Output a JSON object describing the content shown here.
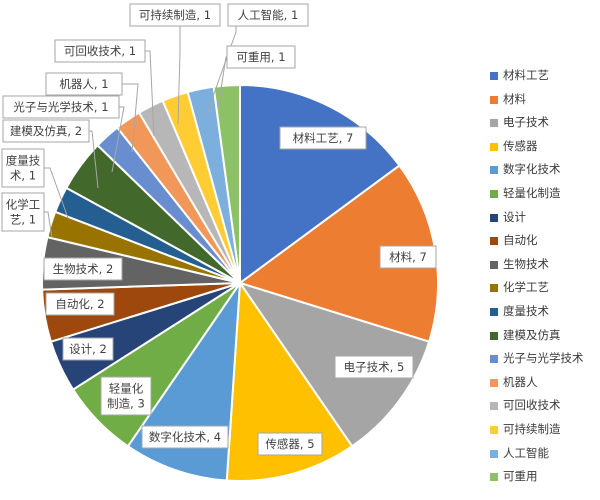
{
  "chart_data": {
    "type": "pie",
    "title": "",
    "slices": [
      {
        "label": "材料工艺",
        "value": 7,
        "color": "#4472C4",
        "data_label": "材料工艺, 7"
      },
      {
        "label": "材料",
        "value": 7,
        "color": "#ED7D31",
        "data_label": "材料, 7"
      },
      {
        "label": "电子技术",
        "value": 5,
        "color": "#A5A5A5",
        "data_label": "电子技术, 5"
      },
      {
        "label": "传感器",
        "value": 5,
        "color": "#FFC000",
        "data_label": "传感器, 5"
      },
      {
        "label": "数字化技术",
        "value": 4,
        "color": "#5B9BD5",
        "data_label": "数字化技术, 4"
      },
      {
        "label": "轻量化制造",
        "value": 3,
        "color": "#70AD47",
        "data_label": "轻量化\n制造, 3"
      },
      {
        "label": "设计",
        "value": 2,
        "color": "#264478",
        "data_label": "设计, 2"
      },
      {
        "label": "自动化",
        "value": 2,
        "color": "#9E480E",
        "data_label": "自动化, 2"
      },
      {
        "label": "生物技术",
        "value": 2,
        "color": "#636363",
        "data_label": "生物技术, 2"
      },
      {
        "label": "化学工艺",
        "value": 1,
        "color": "#997300",
        "data_label": "化学工\n艺, 1"
      },
      {
        "label": "度量技术",
        "value": 1,
        "color": "#255E91",
        "data_label": "度量技\n术, 1"
      },
      {
        "label": "建模及仿真",
        "value": 2,
        "color": "#43682B",
        "data_label": "建模及仿真, 2"
      },
      {
        "label": "光子与光学技术",
        "value": 1,
        "color": "#698ED0",
        "data_label": "光子与光学技术, 1"
      },
      {
        "label": "机器人",
        "value": 1,
        "color": "#F1975A",
        "data_label": "机器人, 1"
      },
      {
        "label": "可回收技术",
        "value": 1,
        "color": "#B7B7B7",
        "data_label": "可回收技术, 1"
      },
      {
        "label": "可持续制造",
        "value": 1,
        "color": "#FFCD33",
        "data_label": "可持续制造, 1"
      },
      {
        "label": "人工智能",
        "value": 1,
        "color": "#7CAFDD",
        "data_label": "人工智能, 1"
      },
      {
        "label": "可重用",
        "value": 1,
        "color": "#8CC168",
        "data_label": "可重用, 1"
      }
    ],
    "legend_position": "right"
  }
}
